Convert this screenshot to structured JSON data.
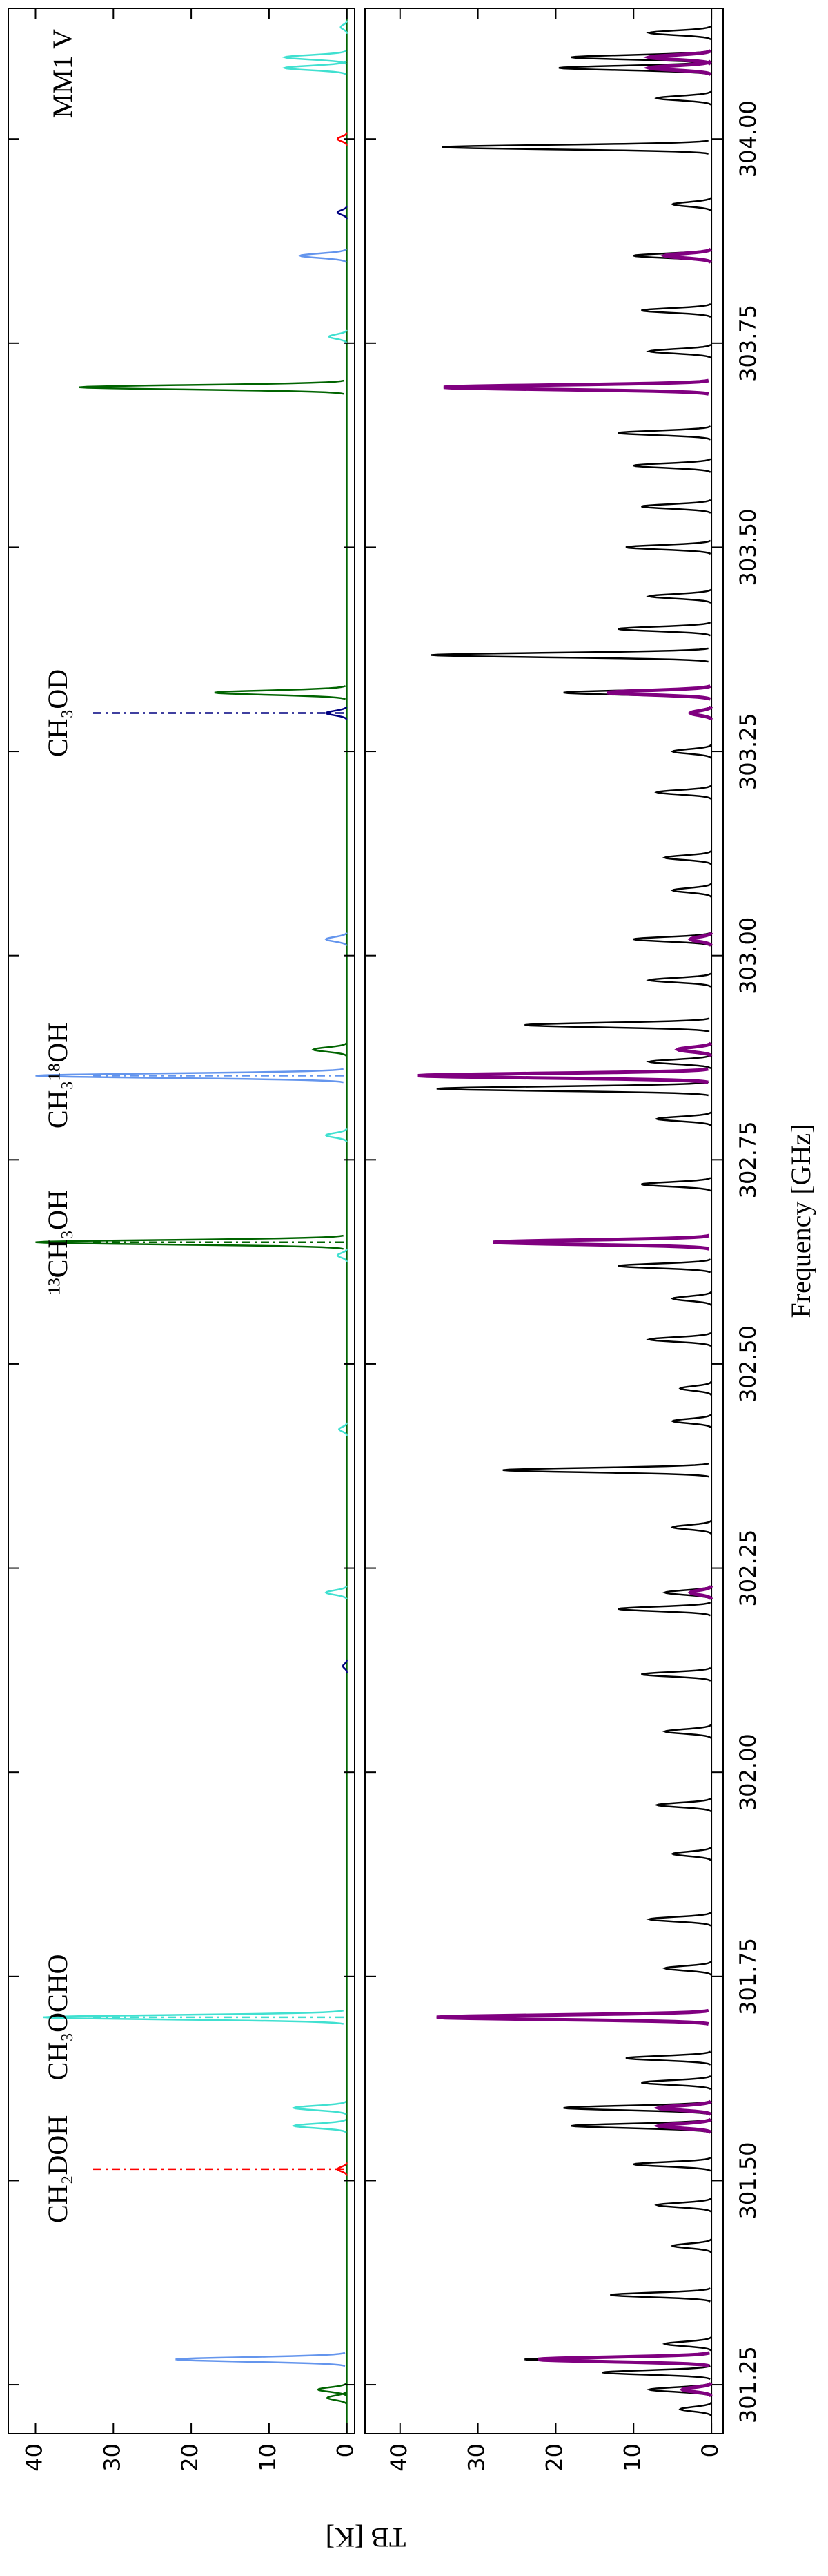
{
  "chart_data": [
    {
      "type": "line",
      "annotation": "MM1 V",
      "xlim": [
        301.19,
        304.16
      ],
      "ylim": [
        -1,
        43.5
      ],
      "yticks": [
        0,
        10,
        20,
        30,
        40
      ],
      "series": [
        {
          "name": "CH₂DOH",
          "color": "#ff0000",
          "marker_x": 301.514,
          "x": [
            301.514,
            304.0
          ],
          "values": [
            1.2,
            1.2
          ]
        },
        {
          "name": "CH₃OCHO",
          "color": "#40e0d0",
          "marker_x": 301.7,
          "x": [
            301.567,
            301.589,
            301.7,
            302.22,
            302.42,
            302.633,
            302.78,
            303.758,
            304.087,
            304.1,
            304.137
          ],
          "values": [
            6.8,
            6.8,
            39,
            2.7,
            1.0,
            1.2,
            2.7,
            2.3,
            8,
            8,
            0.8
          ]
        },
        {
          "name": "¹³CH₃OH",
          "color": "#006400",
          "marker_x": 302.649,
          "x": [
            301.234,
            301.244,
            302.649,
            302.885,
            303.322,
            303.696
          ],
          "values": [
            2.5,
            3.7,
            40,
            4.3,
            17,
            34.4
          ]
        },
        {
          "name": "CH₃¹⁸OH",
          "color": "#6495ed",
          "marker_x": 302.853,
          "x": [
            301.281,
            302.853,
            303.02,
            303.857
          ],
          "values": [
            22,
            40,
            2.7,
            6
          ]
        },
        {
          "name": "CH₃OD",
          "color": "#000080",
          "marker_x": 303.297,
          "x": [
            302.13,
            303.297,
            303.91
          ],
          "values": [
            0.5,
            2.7,
            1.2
          ]
        }
      ]
    },
    {
      "type": "line",
      "xlabel": "Frequency [GHz]",
      "ylabel": "TB [K]",
      "xlim": [
        301.19,
        304.16
      ],
      "ylim": [
        -1.5,
        44.5
      ],
      "xticks": [
        301.25,
        {
          "value": 301.5,
          "label": "301.50"
        },
        301.75,
        {
          "value": 302.0,
          "label": "302.00"
        },
        302.25,
        {
          "value": 302.5,
          "label": "302.50"
        },
        302.75,
        {
          "value": 303.0,
          "label": "303.00"
        },
        303.25,
        {
          "value": 303.5,
          "label": "303.50"
        },
        303.75,
        {
          "value": 304.0,
          "label": "304.00"
        }
      ],
      "yticks": [
        0,
        10,
        20,
        30,
        40
      ],
      "series": [
        {
          "color": "#000000",
          "x": [
            301.22,
            301.244,
            301.265,
            301.281,
            301.3,
            301.36,
            301.42,
            301.47,
            301.52,
            301.567,
            301.589,
            301.62,
            301.65,
            301.7,
            301.76,
            301.82,
            301.9,
            301.96,
            302.05,
            302.12,
            302.2,
            302.22,
            302.3,
            302.37,
            302.43,
            302.47,
            302.53,
            302.58,
            302.62,
            302.649,
            302.72,
            302.8,
            302.837,
            302.87,
            302.915,
            302.97,
            303.02,
            303.08,
            303.12,
            303.2,
            303.25,
            303.322,
            303.368,
            303.4,
            303.44,
            303.5,
            303.55,
            303.6,
            303.64,
            303.696,
            303.74,
            303.79,
            303.857,
            303.92,
            303.99,
            304.05,
            304.087,
            304.1,
            304.13
          ],
          "values": [
            4,
            8,
            14,
            24,
            6,
            13,
            5,
            7,
            10,
            18,
            19,
            9,
            11,
            35.3,
            6,
            8,
            5,
            7,
            6,
            9,
            12,
            6,
            5,
            26.8,
            5,
            4,
            8,
            5,
            12,
            28,
            9,
            7,
            35.3,
            8,
            24,
            8,
            10,
            5,
            6,
            7,
            5,
            19,
            36,
            12,
            8,
            11,
            9,
            10,
            12,
            34.4,
            8,
            9,
            10,
            5,
            34.6,
            7,
            19.6,
            18,
            8
          ]
        },
        {
          "color": "#800080",
          "x": [
            301.244,
            301.281,
            301.567,
            301.589,
            301.7,
            302.22,
            302.649,
            302.853,
            302.885,
            303.02,
            303.297,
            303.322,
            303.696,
            303.857,
            304.087,
            304.1
          ],
          "values": [
            3.7,
            22.3,
            6.8,
            6.8,
            35.3,
            2.7,
            28,
            37.7,
            4.3,
            2.7,
            2.7,
            13.4,
            34.4,
            6,
            8,
            8
          ]
        }
      ]
    }
  ]
}
